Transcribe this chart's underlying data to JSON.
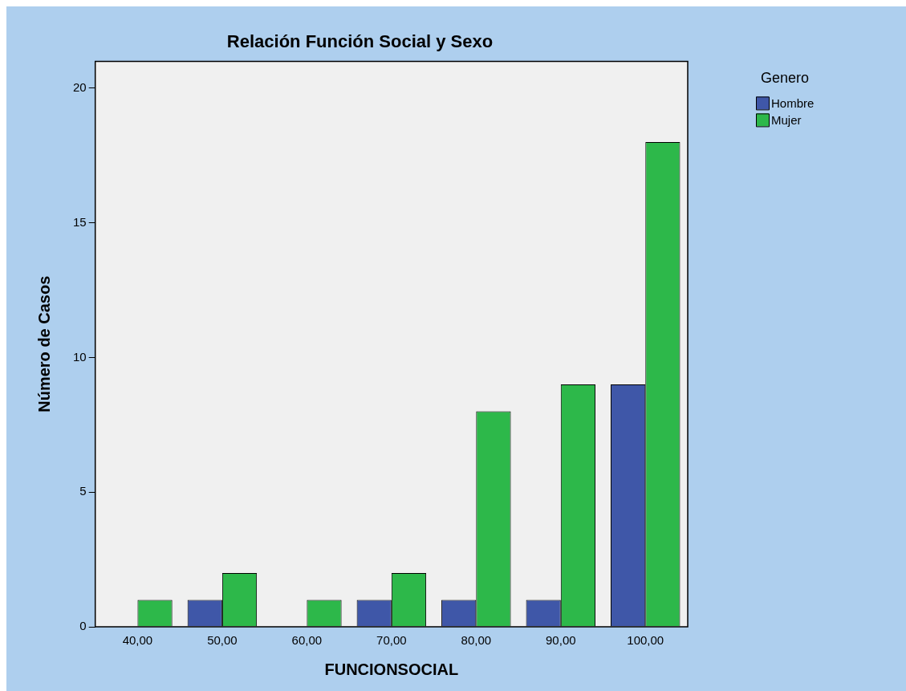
{
  "chart_data": {
    "type": "bar",
    "title": "Relación Función Social y Sexo",
    "xlabel": "FUNCIONSOCIAL",
    "ylabel": "Número de Casos",
    "legend_title": "Genero",
    "categories": [
      "40,00",
      "50,00",
      "60,00",
      "70,00",
      "80,00",
      "90,00",
      "100,00"
    ],
    "series": [
      {
        "name": "Hombre",
        "color": "#3f57a8",
        "values": [
          0,
          1,
          0,
          1,
          1,
          1,
          9
        ]
      },
      {
        "name": "Mujer",
        "color": "#2db84a",
        "values": [
          1,
          2,
          1,
          2,
          8,
          9,
          18
        ]
      }
    ],
    "ylim": [
      0,
      21
    ],
    "yticks": [
      0,
      5,
      10,
      15,
      20
    ],
    "grid": false,
    "legend": "right"
  }
}
